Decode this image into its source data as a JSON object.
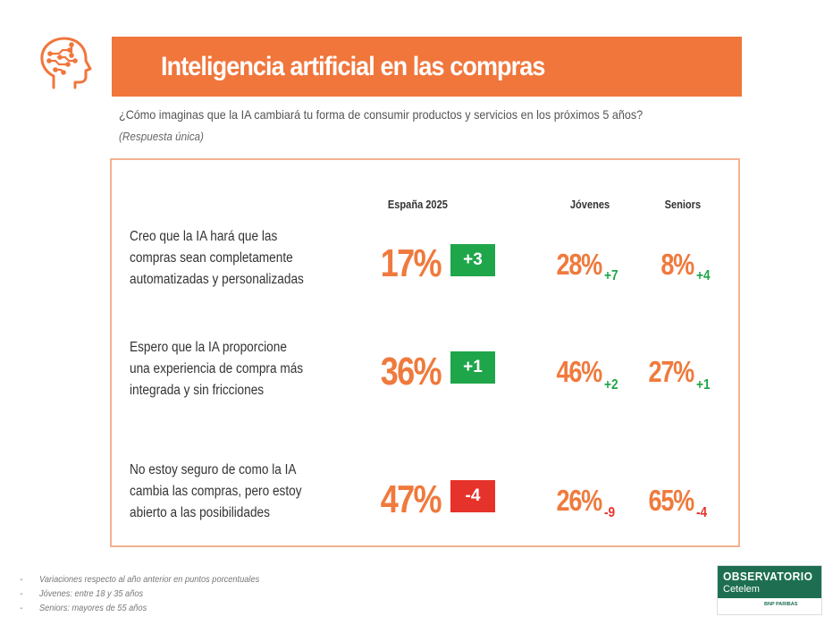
{
  "header": {
    "title": "Inteligencia artificial en las compras",
    "icon": "brain-circuit-icon",
    "accent_color": "#f0763c"
  },
  "question": {
    "text": "¿Cómo imaginas que la IA cambiará tu forma de consumir productos y servicios en los próximos 5 años?",
    "note": "(Respuesta única)"
  },
  "columns": {
    "espana": "España 2025",
    "jovenes": "Jóvenes",
    "seniors": "Seniors"
  },
  "rows": [
    {
      "label": "Creo que la IA hará que las compras sean completamente automatizadas y personalizadas",
      "espana_pct": "17%",
      "espana_delta": "+3",
      "espana_delta_dir": "pos",
      "jovenes_pct": "28%",
      "jovenes_delta": "+7",
      "seniors_pct": "8%",
      "seniors_delta": "+4"
    },
    {
      "label": "Espero que la IA proporcione una experiencia de compra más integrada y sin fricciones",
      "espana_pct": "36%",
      "espana_delta": "+1",
      "espana_delta_dir": "pos",
      "jovenes_pct": "46%",
      "jovenes_delta": "+2",
      "seniors_pct": "27%",
      "seniors_delta": "+1"
    },
    {
      "label": "No estoy seguro de como la IA cambia las compras, pero estoy abierto a las posibilidades",
      "espana_pct": "47%",
      "espana_delta": "-4",
      "espana_delta_dir": "neg",
      "jovenes_pct": "26%",
      "jovenes_delta": "-9",
      "seniors_pct": "65%",
      "seniors_delta": "-4"
    }
  ],
  "colors": {
    "positive": "#1fa64a",
    "negative": "#e5322a",
    "percent": "#ef7a3d",
    "panel_border": "#f2b28f"
  },
  "footnotes": [
    "Variaciones respecto al año anterior en puntos porcentuales",
    "Jóvenes: entre 18 y 35 años",
    "Seniors: mayores de 55 años"
  ],
  "logo": {
    "name": "OBSERVATORIO",
    "sub": "Cetelem",
    "group": "BNP PARIBAS"
  }
}
